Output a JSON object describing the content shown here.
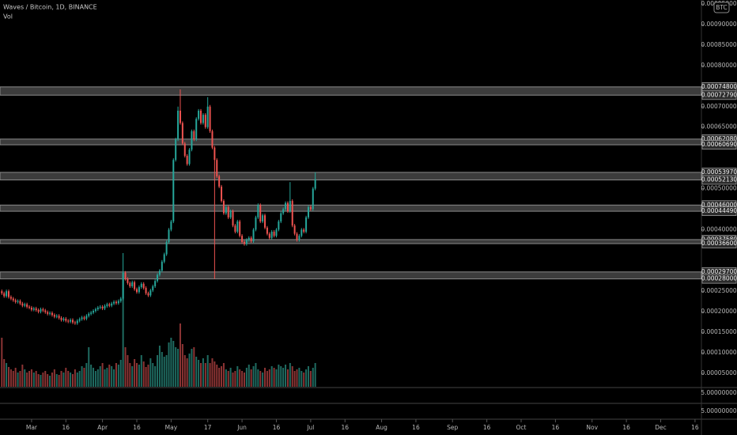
{
  "chart_data": {
    "type": "candlestick",
    "title": "Waves / Bitcoin, 1D, BINANCE",
    "volume_label": "Vol",
    "currency_badge": "BTC",
    "up_color": "#26a69a",
    "down_color": "#ef5350",
    "volume_up_color": "#1f6b61",
    "volume_down_color": "#8c3434",
    "zone_color": "#505050",
    "x": [
      -13,
      -12,
      -11,
      -10,
      -9,
      -8,
      -7,
      -6,
      -5,
      -4,
      -3,
      -2,
      -1,
      0,
      1,
      2,
      3,
      4,
      5,
      6,
      7,
      8,
      9,
      10,
      11,
      12,
      13,
      14,
      15,
      16,
      17,
      18,
      19,
      20,
      21,
      22,
      23,
      24,
      25,
      26,
      27,
      28,
      29,
      30,
      31,
      32,
      33,
      34,
      35,
      36,
      37,
      38,
      39,
      40,
      41,
      42,
      43,
      44,
      45,
      46,
      47,
      48,
      49,
      50,
      51,
      52,
      53,
      54,
      55,
      56,
      57,
      58,
      59,
      60,
      61,
      62,
      63,
      64,
      65,
      66,
      67,
      68,
      69,
      70,
      71,
      72,
      73,
      74,
      75,
      76,
      77,
      78,
      79,
      80,
      81,
      82,
      83,
      84,
      85,
      86,
      87,
      88,
      89,
      90,
      91,
      92,
      93,
      94,
      95,
      96,
      97,
      98,
      99,
      100,
      101,
      102,
      103,
      104,
      105,
      106,
      107,
      108,
      109,
      110,
      111,
      112,
      113,
      114,
      115,
      116,
      117,
      118,
      119,
      120,
      121,
      122,
      123,
      124
    ],
    "open": [
      0.00025,
      0.000245,
      0.000238,
      0.00025,
      0.000236,
      0.000232,
      0.000228,
      0.000224,
      0.000226,
      0.00022,
      0.000215,
      0.000218,
      0.000212,
      0.00021,
      0.000205,
      0.000208,
      0.000204,
      0.0002,
      0.000206,
      0.000203,
      0.000199,
      0.000195,
      0.000197,
      0.000192,
      0.000188,
      0.00019,
      0.000185,
      0.00018,
      0.000183,
      0.000178,
      0.000176,
      0.00018,
      0.000174,
      0.000172,
      0.000178,
      0.000182,
      0.000186,
      0.000183,
      0.00019,
      0.000195,
      0.000198,
      0.000202,
      0.000206,
      0.00021,
      0.000212,
      0.000208,
      0.000214,
      0.000218,
      0.000215,
      0.00022,
      0.000224,
      0.000221,
      0.000226,
      0.000232,
      0.000295,
      0.00028,
      0.00027,
      0.000262,
      0.000272,
      0.000255,
      0.000248,
      0.00026,
      0.000268,
      0.000258,
      0.000245,
      0.00024,
      0.000252,
      0.000262,
      0.000275,
      0.00029,
      0.0003,
      0.000322,
      0.00034,
      0.00037,
      0.0004,
      0.00042,
      0.00057,
      0.00062,
      0.00069,
      0.00066,
      0.00061,
      0.00058,
      0.00056,
      0.000595,
      0.00064,
      0.00062,
      0.00067,
      0.00069,
      0.00066,
      0.00068,
      0.00065,
      0.0007,
      0.00064,
      0.0006,
      0.00057,
      0.00053,
      0.000505,
      0.00047,
      0.00044,
      0.000455,
      0.00043,
      0.000445,
      0.00041,
      0.000395,
      0.00042,
      0.000385,
      0.00037,
      0.000365,
      0.000375,
      0.00038,
      0.000372,
      0.0004,
      0.00043,
      0.00046,
      0.00042,
      0.000435,
      0.000405,
      0.00039,
      0.00038,
      0.000395,
      0.000385,
      0.0004,
      0.00042,
      0.00044,
      0.00045,
      0.000465,
      0.000445,
      0.00047,
      0.00041,
      0.00039,
      0.000375,
      0.000385,
      0.0004,
      0.000395,
      0.00043,
      0.000455,
      0.00045,
      0.0005
    ],
    "high": [
      0.000254,
      0.000249,
      0.000254,
      0.000254,
      0.00024,
      0.000236,
      0.000232,
      0.00023,
      0.00023,
      0.000224,
      0.000222,
      0.000222,
      0.000216,
      0.000214,
      0.000212,
      0.000212,
      0.000208,
      0.00021,
      0.00021,
      0.000207,
      0.000203,
      0.000201,
      0.000201,
      0.000196,
      0.000194,
      0.000194,
      0.000189,
      0.000187,
      0.000187,
      0.000182,
      0.000184,
      0.000184,
      0.000178,
      0.000182,
      0.000186,
      0.00019,
      0.00019,
      0.000194,
      0.000199,
      0.000202,
      0.000206,
      0.00021,
      0.000214,
      0.000216,
      0.000216,
      0.000218,
      0.000222,
      0.000222,
      0.000224,
      0.000228,
      0.000228,
      0.00023,
      0.000236,
      0.000343,
      0.000299,
      0.000284,
      0.000274,
      0.000276,
      0.000276,
      0.000259,
      0.000264,
      0.000272,
      0.000272,
      0.000262,
      0.000249,
      0.000256,
      0.000266,
      0.000279,
      0.000294,
      0.000304,
      0.000326,
      0.000344,
      0.000374,
      0.000404,
      0.000424,
      0.000574,
      0.000624,
      0.0007,
      0.000742,
      0.000664,
      0.000614,
      0.000584,
      0.000599,
      0.000644,
      0.000644,
      0.000674,
      0.000694,
      0.000694,
      0.000684,
      0.000684,
      0.000723,
      0.000704,
      0.000644,
      0.000604,
      0.000574,
      0.000534,
      0.000509,
      0.000474,
      0.000459,
      0.000459,
      0.000449,
      0.000449,
      0.000414,
      0.000424,
      0.000424,
      0.000389,
      0.000374,
      0.000379,
      0.000384,
      0.000384,
      0.000404,
      0.000434,
      0.000464,
      0.000464,
      0.000439,
      0.000439,
      0.000409,
      0.000394,
      0.000399,
      0.000399,
      0.000404,
      0.000424,
      0.000444,
      0.000454,
      0.000469,
      0.000469,
      0.000516,
      0.000474,
      0.000414,
      0.000394,
      0.000389,
      0.000404,
      0.000404,
      0.000434,
      0.000459,
      0.000459,
      0.000504,
      0.00054
    ],
    "low": [
      0.000241,
      0.000234,
      0.000234,
      0.000232,
      0.000228,
      0.000224,
      0.00022,
      0.00022,
      0.000216,
      0.000211,
      0.000211,
      0.000208,
      0.000206,
      0.000201,
      0.000201,
      0.0002,
      0.000196,
      0.000196,
      0.000199,
      0.000195,
      0.000191,
      0.000191,
      0.000188,
      0.000184,
      0.000184,
      0.000181,
      0.000176,
      0.000176,
      0.000174,
      0.000172,
      0.000172,
      0.00017,
      0.000168,
      0.000168,
      0.000174,
      0.000178,
      0.000179,
      0.000179,
      0.000186,
      0.000191,
      0.000194,
      0.000198,
      0.000202,
      0.000206,
      0.000204,
      0.000204,
      0.00021,
      0.000211,
      0.000211,
      0.000216,
      0.000217,
      0.000217,
      0.000222,
      0.000228,
      0.000276,
      0.000266,
      0.000258,
      0.000258,
      0.000251,
      0.000244,
      0.000244,
      0.000256,
      0.000254,
      0.000241,
      0.000236,
      0.000236,
      0.000248,
      0.000258,
      0.000271,
      0.000286,
      0.000296,
      0.000318,
      0.000336,
      0.000366,
      0.000396,
      0.000416,
      0.000566,
      0.000616,
      0.000656,
      0.000606,
      0.000576,
      0.000556,
      0.000556,
      0.000591,
      0.000616,
      0.000616,
      0.000666,
      0.000656,
      0.000656,
      0.000646,
      0.000646,
      0.000636,
      0.000596,
      0.00028,
      0.000526,
      0.000501,
      0.000466,
      0.000436,
      0.000436,
      0.000426,
      0.000426,
      0.000406,
      0.000391,
      0.000391,
      0.000381,
      0.000366,
      0.000361,
      0.000361,
      0.000371,
      0.000368,
      0.000368,
      0.000396,
      0.000426,
      0.000416,
      0.000416,
      0.000401,
      0.000386,
      0.000376,
      0.000376,
      0.000381,
      0.000381,
      0.000396,
      0.000416,
      0.000436,
      0.000446,
      0.000441,
      0.000441,
      0.000406,
      0.000386,
      0.000371,
      0.000371,
      0.000381,
      0.000391,
      0.000391,
      0.000426,
      0.000446,
      0.000446,
      0.000496
    ],
    "close": [
      0.000245,
      0.000238,
      0.00025,
      0.000236,
      0.000232,
      0.000228,
      0.000224,
      0.000226,
      0.00022,
      0.000215,
      0.000218,
      0.000212,
      0.00021,
      0.000205,
      0.000208,
      0.000204,
      0.0002,
      0.000206,
      0.000203,
      0.000199,
      0.000195,
      0.000197,
      0.000192,
      0.000188,
      0.00019,
      0.000185,
      0.00018,
      0.000183,
      0.000178,
      0.000176,
      0.00018,
      0.000174,
      0.000172,
      0.000178,
      0.000182,
      0.000186,
      0.000183,
      0.00019,
      0.000195,
      0.000198,
      0.000202,
      0.000206,
      0.00021,
      0.000212,
      0.000208,
      0.000214,
      0.000218,
      0.000215,
      0.00022,
      0.000224,
      0.000221,
      0.000226,
      0.000232,
      0.000295,
      0.00028,
      0.00027,
      0.000262,
      0.000272,
      0.000255,
      0.000248,
      0.00026,
      0.000268,
      0.000258,
      0.000245,
      0.00024,
      0.000252,
      0.000262,
      0.000275,
      0.00029,
      0.0003,
      0.000322,
      0.00034,
      0.00037,
      0.0004,
      0.00042,
      0.00057,
      0.00062,
      0.00069,
      0.00066,
      0.00061,
      0.00058,
      0.00056,
      0.000595,
      0.00064,
      0.00062,
      0.00067,
      0.00069,
      0.00066,
      0.00068,
      0.00065,
      0.0007,
      0.00064,
      0.0006,
      0.00057,
      0.00053,
      0.000505,
      0.00047,
      0.00044,
      0.000455,
      0.00043,
      0.000445,
      0.00041,
      0.000395,
      0.00042,
      0.000385,
      0.00037,
      0.000365,
      0.000375,
      0.00038,
      0.000372,
      0.0004,
      0.00043,
      0.00046,
      0.00042,
      0.000435,
      0.000405,
      0.00039,
      0.00038,
      0.000395,
      0.000385,
      0.0004,
      0.00042,
      0.00044,
      0.00045,
      0.000465,
      0.000445,
      0.00047,
      0.00041,
      0.00039,
      0.000375,
      0.000385,
      0.0004,
      0.000395,
      0.00043,
      0.000455,
      0.00045,
      0.0005,
      0.000523
    ],
    "volume": [
      62,
      35,
      30,
      25,
      22,
      20,
      24,
      18,
      20,
      28,
      22,
      18,
      20,
      22,
      18,
      20,
      16,
      15,
      18,
      20,
      16,
      14,
      18,
      22,
      16,
      15,
      20,
      18,
      24,
      20,
      18,
      16,
      22,
      18,
      20,
      26,
      24,
      30,
      50,
      28,
      24,
      20,
      22,
      26,
      30,
      22,
      24,
      28,
      26,
      22,
      30,
      28,
      34,
      145,
      50,
      40,
      30,
      26,
      35,
      30,
      28,
      40,
      32,
      25,
      28,
      36,
      30,
      26,
      40,
      52,
      44,
      38,
      40,
      56,
      62,
      58,
      50,
      48,
      80,
      54,
      40,
      36,
      42,
      48,
      50,
      38,
      34,
      30,
      36,
      30,
      40,
      30,
      36,
      32,
      28,
      24,
      26,
      30,
      22,
      20,
      24,
      18,
      20,
      26,
      22,
      20,
      18,
      24,
      28,
      22,
      26,
      30,
      22,
      20,
      18,
      24,
      20,
      22,
      26,
      24,
      22,
      28,
      26,
      24,
      28,
      22,
      30,
      26,
      20,
      22,
      24,
      20,
      18,
      22,
      26,
      20,
      24,
      30
    ],
    "volume_lim": [
      0,
      150
    ],
    "xlim": [
      -13.8,
      292.8
    ],
    "xticks": [
      {
        "value": 0,
        "label": "Mar"
      },
      {
        "value": 15,
        "label": "16"
      },
      {
        "value": 31,
        "label": "Apr"
      },
      {
        "value": 46,
        "label": "16"
      },
      {
        "value": 61,
        "label": "May"
      },
      {
        "value": 77,
        "label": "17"
      },
      {
        "value": 92,
        "label": "Jun"
      },
      {
        "value": 107,
        "label": "16"
      },
      {
        "value": 122,
        "label": "Jul"
      },
      {
        "value": 137,
        "label": "16"
      },
      {
        "value": 153,
        "label": "Aug"
      },
      {
        "value": 168,
        "label": "16"
      },
      {
        "value": 184,
        "label": "Sep"
      },
      {
        "value": 199,
        "label": "16"
      },
      {
        "value": 214,
        "label": "Oct"
      },
      {
        "value": 229,
        "label": "16"
      },
      {
        "value": 245,
        "label": "Nov"
      },
      {
        "value": 260,
        "label": "16"
      },
      {
        "value": 275,
        "label": "Dec"
      },
      {
        "value": 290,
        "label": "16"
      }
    ],
    "ylim": [
      1.52e-05,
      0.0009598
    ],
    "yticks": [
      {
        "value": 0.00095,
        "label": "0.00095000"
      },
      {
        "value": 0.0009,
        "label": "0.00090000"
      },
      {
        "value": 0.00085,
        "label": "0.00085000"
      },
      {
        "value": 0.0008,
        "label": "0.00080000"
      },
      {
        "value": 0.0007,
        "label": "0.00070000"
      },
      {
        "value": 0.00065,
        "label": "0.00065000"
      },
      {
        "value": 0.0005,
        "label": "0.00050000"
      },
      {
        "value": 0.0004,
        "label": "0.00040000"
      },
      {
        "value": 0.00025,
        "label": "0.00025000"
      },
      {
        "value": 0.0002,
        "label": "0.00020000"
      },
      {
        "value": 0.00015,
        "label": "0.00015000"
      },
      {
        "value": 0.0001,
        "label": "0.00010000"
      },
      {
        "value": 5e-05,
        "label": "0.00005000"
      }
    ],
    "zones": [
      {
        "high": {
          "value": 0.000748,
          "label": "0.00074800"
        },
        "low": {
          "value": 0.0007279,
          "label": "0.00072790"
        }
      },
      {
        "high": {
          "value": 0.0006208,
          "label": "0.00062080"
        },
        "low": {
          "value": 0.0006069,
          "label": "0.00060690"
        }
      },
      {
        "high": {
          "value": 0.0005397,
          "label": "0.00053970"
        },
        "low": {
          "value": 0.0005213,
          "label": "0.00052130"
        }
      },
      {
        "high": {
          "value": 0.00046,
          "label": "0.00046000"
        },
        "low": {
          "value": 0.0004449,
          "label": "0.00044490"
        }
      },
      {
        "high": {
          "value": 0.0003758,
          "label": "0.00037580"
        },
        "low": {
          "value": 0.000366,
          "label": "0.00036600"
        }
      },
      {
        "high": {
          "value": 0.000297,
          "label": "0.00029700"
        },
        "low": {
          "value": 0.00028,
          "label": "0.00028000"
        }
      }
    ],
    "subpane_labels": [
      "5.00000000",
      "5.00000000"
    ]
  }
}
